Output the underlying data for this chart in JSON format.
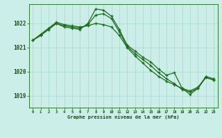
{
  "title": "Graphe pression niveau de la mer (hPa)",
  "background_color": "#cceee8",
  "grid_color": "#aaddcc",
  "line_color": "#1a6b1a",
  "marker_color": "#1a6b1a",
  "x_ticks": [
    0,
    1,
    2,
    3,
    4,
    5,
    6,
    7,
    8,
    9,
    10,
    11,
    12,
    13,
    14,
    15,
    16,
    17,
    18,
    19,
    20,
    21,
    22,
    23
  ],
  "ylim": [
    1018.5,
    1022.8
  ],
  "yticks": [
    1019,
    1020,
    1021,
    1022
  ],
  "series": [
    [
      1021.3,
      1021.5,
      1021.75,
      1022.0,
      1021.85,
      1021.8,
      1021.75,
      1022.0,
      1022.6,
      1022.55,
      1022.3,
      1021.75,
      1021.1,
      1020.85,
      1020.6,
      1020.4,
      1020.1,
      1019.85,
      1019.95,
      1019.3,
      1019.05,
      1019.3,
      1019.8,
      1019.7
    ],
    [
      1021.3,
      1021.5,
      1021.75,
      1022.0,
      1021.9,
      1021.85,
      1021.8,
      1021.95,
      1022.35,
      1022.4,
      1022.2,
      1021.65,
      1021.05,
      1020.75,
      1020.5,
      1020.25,
      1019.95,
      1019.7,
      1019.5,
      1019.25,
      1019.15,
      1019.3,
      1019.75,
      1019.65
    ],
    [
      1021.3,
      1021.55,
      1021.8,
      1022.05,
      1021.95,
      1021.9,
      1021.85,
      1021.9,
      1022.0,
      1021.95,
      1021.85,
      1021.5,
      1021.0,
      1020.65,
      1020.35,
      1020.05,
      1019.8,
      1019.6,
      1019.45,
      1019.3,
      1019.2,
      1019.35,
      1019.75,
      1019.65
    ]
  ]
}
